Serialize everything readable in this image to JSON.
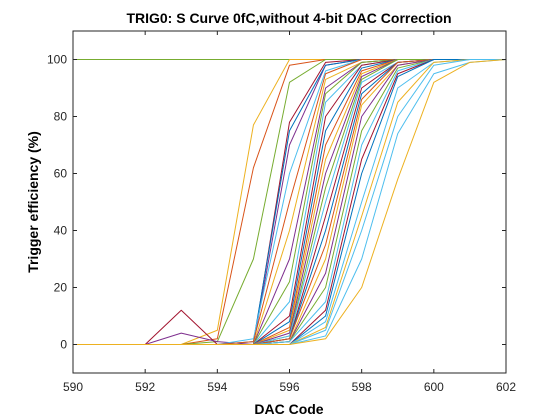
{
  "chart_data": {
    "type": "line",
    "title": "TRIG0: S Curve 0fC,without 4-bit DAC Correction",
    "xlabel": "DAC Code",
    "ylabel": "Trigger efficiency (%)",
    "xlim": [
      590,
      602
    ],
    "ylim": [
      -10,
      110
    ],
    "xticks": [
      590,
      592,
      594,
      596,
      598,
      600,
      602
    ],
    "yticks": [
      0,
      20,
      40,
      60,
      80,
      100
    ],
    "grid": false,
    "legend": "none",
    "x": [
      590,
      591,
      592,
      593,
      594,
      595,
      596,
      597,
      598,
      599,
      600,
      601,
      602
    ],
    "series": [
      {
        "color": "#77AC30",
        "values": [
          100,
          100,
          100,
          100,
          100,
          100,
          100,
          100,
          100,
          100,
          100,
          100,
          100
        ]
      },
      {
        "color": "#EDB120",
        "values": [
          0,
          0,
          0,
          0,
          5,
          77,
          100,
          100,
          100,
          100,
          100,
          100,
          100
        ]
      },
      {
        "color": "#D95319",
        "values": [
          0,
          0,
          0,
          0,
          2,
          62,
          98,
          100,
          100,
          100,
          100,
          100,
          100
        ]
      },
      {
        "color": "#77AC30",
        "values": [
          0,
          0,
          0,
          0,
          1,
          30,
          92,
          100,
          100,
          100,
          100,
          100,
          100
        ]
      },
      {
        "color": "#A2142F",
        "values": [
          0,
          0,
          0,
          12,
          0,
          0,
          78,
          99,
          100,
          100,
          100,
          100,
          100
        ]
      },
      {
        "color": "#7E2F8E",
        "values": [
          0,
          0,
          0,
          4,
          1,
          0,
          70,
          98,
          100,
          100,
          100,
          100,
          100
        ]
      },
      {
        "color": "#0072BD",
        "values": [
          0,
          0,
          0,
          0,
          0,
          1,
          75,
          98,
          100,
          100,
          100,
          100,
          100
        ]
      },
      {
        "color": "#4DBEEE",
        "values": [
          0,
          0,
          0,
          0,
          0,
          2,
          60,
          96,
          100,
          100,
          100,
          100,
          100
        ]
      },
      {
        "color": "#D95319",
        "values": [
          0,
          0,
          0,
          0,
          0,
          1,
          50,
          95,
          100,
          100,
          100,
          100,
          100
        ]
      },
      {
        "color": "#EDB120",
        "values": [
          0,
          0,
          0,
          0,
          0,
          0,
          40,
          93,
          99,
          100,
          100,
          100,
          100
        ]
      },
      {
        "color": "#7E2F8E",
        "values": [
          0,
          0,
          0,
          0,
          0,
          0,
          30,
          90,
          99,
          100,
          100,
          100,
          100
        ]
      },
      {
        "color": "#77AC30",
        "values": [
          0,
          0,
          0,
          0,
          0,
          0,
          22,
          88,
          99,
          100,
          100,
          100,
          100
        ]
      },
      {
        "color": "#4DBEEE",
        "values": [
          0,
          0,
          0,
          0,
          0,
          0,
          15,
          85,
          98,
          100,
          100,
          100,
          100
        ]
      },
      {
        "color": "#A2142F",
        "values": [
          0,
          0,
          0,
          0,
          0,
          0,
          10,
          80,
          98,
          100,
          100,
          100,
          100
        ]
      },
      {
        "color": "#0072BD",
        "values": [
          0,
          0,
          0,
          0,
          0,
          0,
          8,
          75,
          97,
          100,
          100,
          100,
          100
        ]
      },
      {
        "color": "#D95319",
        "values": [
          0,
          0,
          0,
          0,
          0,
          0,
          6,
          70,
          96,
          100,
          100,
          100,
          100
        ]
      },
      {
        "color": "#EDB120",
        "values": [
          0,
          0,
          0,
          0,
          0,
          0,
          5,
          65,
          95,
          100,
          100,
          100,
          100
        ]
      },
      {
        "color": "#7E2F8E",
        "values": [
          0,
          0,
          0,
          0,
          0,
          0,
          4,
          60,
          94,
          100,
          100,
          100,
          100
        ]
      },
      {
        "color": "#77AC30",
        "values": [
          0,
          0,
          0,
          0,
          0,
          0,
          3,
          55,
          93,
          100,
          100,
          100,
          100
        ]
      },
      {
        "color": "#4DBEEE",
        "values": [
          0,
          0,
          0,
          0,
          0,
          0,
          3,
          50,
          92,
          99,
          100,
          100,
          100
        ]
      },
      {
        "color": "#A2142F",
        "values": [
          0,
          0,
          0,
          0,
          0,
          0,
          2,
          45,
          90,
          99,
          100,
          100,
          100
        ]
      },
      {
        "color": "#0072BD",
        "values": [
          0,
          0,
          0,
          0,
          0,
          0,
          2,
          40,
          88,
          99,
          100,
          100,
          100
        ]
      },
      {
        "color": "#D95319",
        "values": [
          0,
          0,
          0,
          0,
          0,
          0,
          2,
          35,
          86,
          99,
          100,
          100,
          100
        ]
      },
      {
        "color": "#EDB120",
        "values": [
          0,
          0,
          0,
          0,
          0,
          0,
          1,
          30,
          84,
          98,
          100,
          100,
          100
        ]
      },
      {
        "color": "#7E2F8E",
        "values": [
          0,
          0,
          0,
          0,
          0,
          0,
          1,
          25,
          80,
          98,
          100,
          100,
          100
        ]
      },
      {
        "color": "#77AC30",
        "values": [
          0,
          0,
          0,
          0,
          0,
          0,
          1,
          20,
          75,
          97,
          100,
          100,
          100
        ]
      },
      {
        "color": "#4DBEEE",
        "values": [
          0,
          0,
          0,
          0,
          0,
          0,
          1,
          15,
          70,
          96,
          100,
          100,
          100
        ]
      },
      {
        "color": "#A2142F",
        "values": [
          0,
          0,
          0,
          0,
          0,
          0,
          0,
          12,
          65,
          95,
          100,
          100,
          100
        ]
      },
      {
        "color": "#0072BD",
        "values": [
          0,
          0,
          0,
          0,
          0,
          0,
          0,
          10,
          60,
          94,
          100,
          100,
          100
        ]
      },
      {
        "color": "#4DBEEE",
        "values": [
          0,
          0,
          0,
          0,
          0,
          0,
          0,
          8,
          50,
          90,
          99,
          100,
          100
        ]
      },
      {
        "color": "#EDB120",
        "values": [
          0,
          0,
          0,
          0,
          0,
          0,
          0,
          6,
          45,
          85,
          99,
          100,
          100
        ]
      },
      {
        "color": "#4DBEEE",
        "values": [
          0,
          0,
          0,
          0,
          0,
          0,
          0,
          5,
          40,
          80,
          98,
          100,
          100
        ]
      },
      {
        "color": "#4DBEEE",
        "values": [
          0,
          0,
          0,
          0,
          0,
          0,
          0,
          3,
          30,
          74,
          95,
          99,
          100
        ]
      },
      {
        "color": "#EDB120",
        "values": [
          0,
          0,
          0,
          0,
          0,
          0,
          0,
          2,
          20,
          58,
          92,
          99,
          100
        ]
      }
    ]
  }
}
